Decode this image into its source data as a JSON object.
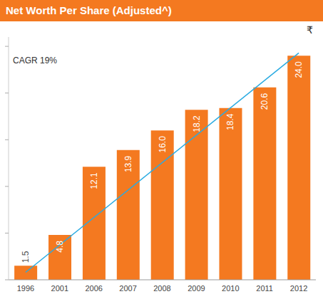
{
  "chart_data": {
    "type": "bar",
    "title": "Net Worth Per Share (Adjusted^)",
    "y_label": "₹",
    "annotations": [
      "CAGR 19%"
    ],
    "categories": [
      "1996",
      "2001",
      "2006",
      "2007",
      "2008",
      "2009",
      "2010",
      "2011",
      "2012"
    ],
    "series": [
      {
        "type": "bar",
        "color": "#f47920",
        "values": [
          1.5,
          4.8,
          12.1,
          13.9,
          16.0,
          18.2,
          18.4,
          20.6,
          24.0
        ],
        "value_labels": [
          "1.5",
          "4.8",
          "12.1",
          "13.9",
          "16.0",
          "18.2",
          "18.4",
          "20.6",
          "24.0"
        ]
      },
      {
        "type": "line",
        "color": "#29abe2",
        "values": [
          0.8,
          null,
          null,
          null,
          null,
          null,
          null,
          null,
          24.3
        ]
      }
    ],
    "ylim": [
      0,
      26
    ],
    "yticks": [
      0,
      5,
      10,
      15,
      20,
      25
    ],
    "grid": false,
    "data_labels": true,
    "tick_labels": "x"
  }
}
